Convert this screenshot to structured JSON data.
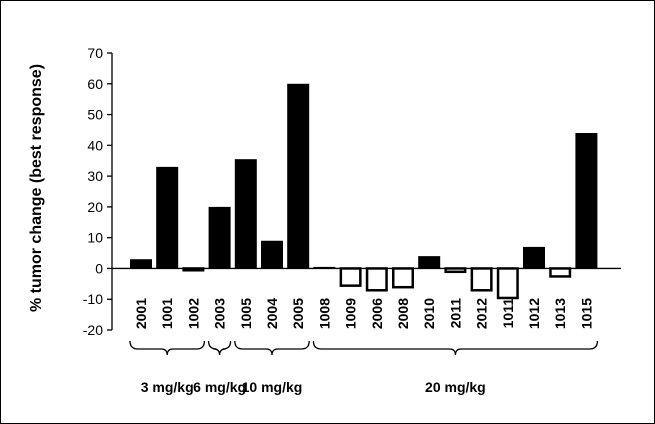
{
  "chart_data": {
    "type": "bar",
    "ylabel": "% tumor change (best response)",
    "xlabel": "",
    "ylim": [
      -20,
      70
    ],
    "yticks": [
      -20,
      -10,
      0,
      10,
      20,
      30,
      40,
      50,
      60,
      70
    ],
    "grid": false,
    "legend": "none",
    "colors": {
      "positive_fill": "#000000",
      "negative_fill": "#ffffff",
      "stroke": "#000000"
    },
    "categories": [
      "2001",
      "1001",
      "1002",
      "2003",
      "1005",
      "2004",
      "2005",
      "1008",
      "1009",
      "2006",
      "2008",
      "2010",
      "2011",
      "2012",
      "1011",
      "1012",
      "1013",
      "1015"
    ],
    "values": [
      3,
      33,
      -1,
      20,
      35.5,
      9,
      60,
      0.5,
      -6,
      -7.5,
      -6.5,
      4,
      -1.5,
      -7.5,
      -10,
      7,
      -3,
      44
    ],
    "groups": [
      {
        "label": "3 mg/kg",
        "start": 0,
        "end": 2
      },
      {
        "label": "6 mg/kg",
        "start": 3,
        "end": 3
      },
      {
        "label": "10 mg/kg",
        "start": 4,
        "end": 6
      },
      {
        "label": "20 mg/kg",
        "start": 7,
        "end": 17
      }
    ]
  }
}
